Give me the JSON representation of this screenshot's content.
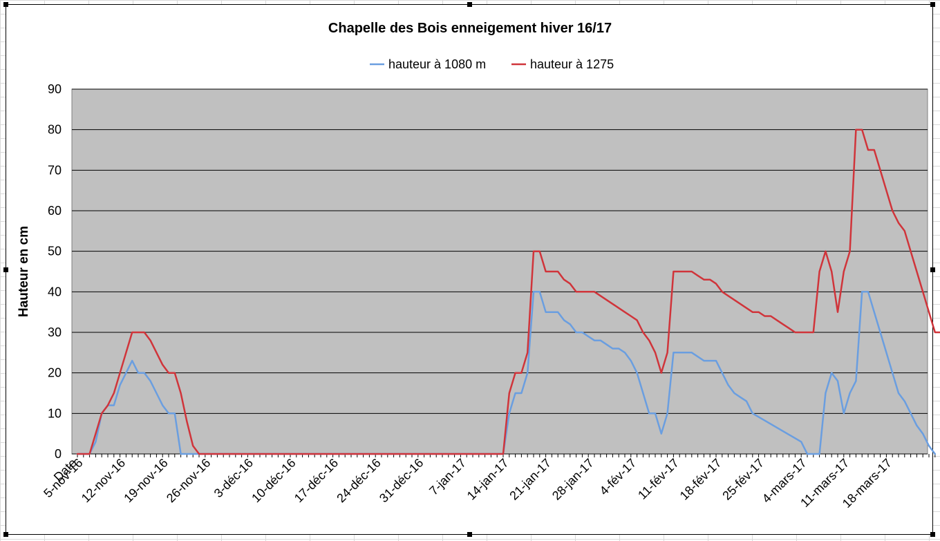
{
  "chart_data": {
    "type": "line",
    "title": "Chapelle des Bois enneigement hiver 16/17",
    "ylabel": "Hauteur en cm",
    "xlabel": "",
    "ylim": [
      0,
      90
    ],
    "y_ticks": [
      "0",
      "10",
      "20",
      "30",
      "40",
      "50",
      "60",
      "70",
      "80",
      "90"
    ],
    "grid": "horizontal",
    "legend_position": "top",
    "plot_background": "#c0c0c0",
    "x_labels": [
      "Date",
      "5-nov-16",
      "12-nov-16",
      "19-nov-16",
      "26-nov-16",
      "3-déc-16",
      "10-déc-16",
      "17-déc-16",
      "24-déc-16",
      "31-déc-16",
      "7-jan-17",
      "14-jan-17",
      "21-jan-17",
      "28-jan-17",
      "4-fév-17",
      "11-fév-17",
      "18-fév-17",
      "25-fév-17",
      "4-mars-17",
      "11-mars-17",
      "18-mars-17"
    ],
    "x_label_days": [
      0,
      1,
      8,
      15,
      22,
      29,
      36,
      43,
      50,
      57,
      64,
      71,
      78,
      85,
      92,
      99,
      106,
      113,
      120,
      127,
      134
    ],
    "series": [
      {
        "name": "hauteur à 1080 m",
        "color": "#6a9ee0",
        "points": [
          [
            0,
            0
          ],
          [
            2,
            0
          ],
          [
            3,
            3
          ],
          [
            4,
            10
          ],
          [
            5,
            12
          ],
          [
            6,
            12
          ],
          [
            7,
            17
          ],
          [
            8,
            20
          ],
          [
            9,
            23
          ],
          [
            10,
            20
          ],
          [
            11,
            20
          ],
          [
            12,
            18
          ],
          [
            13,
            15
          ],
          [
            14,
            12
          ],
          [
            15,
            10
          ],
          [
            16,
            10
          ],
          [
            17,
            0
          ],
          [
            70,
            0
          ],
          [
            71,
            10
          ],
          [
            72,
            15
          ],
          [
            73,
            15
          ],
          [
            74,
            20
          ],
          [
            75,
            40
          ],
          [
            76,
            40
          ],
          [
            77,
            35
          ],
          [
            78,
            35
          ],
          [
            79,
            35
          ],
          [
            80,
            33
          ],
          [
            81,
            32
          ],
          [
            82,
            30
          ],
          [
            83,
            30
          ],
          [
            84,
            29
          ],
          [
            85,
            28
          ],
          [
            86,
            28
          ],
          [
            87,
            27
          ],
          [
            88,
            26
          ],
          [
            89,
            26
          ],
          [
            90,
            25
          ],
          [
            91,
            23
          ],
          [
            92,
            20
          ],
          [
            93,
            15
          ],
          [
            94,
            10
          ],
          [
            95,
            10
          ],
          [
            96,
            5
          ],
          [
            97,
            10
          ],
          [
            98,
            25
          ],
          [
            101,
            25
          ],
          [
            102,
            24
          ],
          [
            103,
            23
          ],
          [
            105,
            23
          ],
          [
            106,
            20
          ],
          [
            107,
            17
          ],
          [
            108,
            15
          ],
          [
            109,
            14
          ],
          [
            110,
            13
          ],
          [
            111,
            10
          ],
          [
            119,
            3
          ],
          [
            120,
            0
          ],
          [
            122,
            0
          ],
          [
            123,
            15
          ],
          [
            124,
            20
          ],
          [
            125,
            18
          ],
          [
            126,
            10
          ],
          [
            127,
            15
          ],
          [
            128,
            18
          ],
          [
            129,
            40
          ],
          [
            130,
            40
          ],
          [
            131,
            35
          ],
          [
            132,
            30
          ],
          [
            133,
            25
          ],
          [
            134,
            20
          ],
          [
            135,
            15
          ],
          [
            136,
            13
          ],
          [
            137,
            10
          ],
          [
            138,
            7
          ],
          [
            139,
            5
          ],
          [
            140,
            2
          ],
          [
            141,
            0
          ]
        ]
      },
      {
        "name": "hauteur à 1275",
        "color": "#d0343a",
        "points": [
          [
            0,
            0
          ],
          [
            2,
            0
          ],
          [
            3,
            5
          ],
          [
            4,
            10
          ],
          [
            5,
            12
          ],
          [
            6,
            15
          ],
          [
            7,
            20
          ],
          [
            8,
            25
          ],
          [
            9,
            30
          ],
          [
            11,
            30
          ],
          [
            12,
            28
          ],
          [
            13,
            25
          ],
          [
            14,
            22
          ],
          [
            15,
            20
          ],
          [
            16,
            20
          ],
          [
            17,
            15
          ],
          [
            18,
            8
          ],
          [
            19,
            2
          ],
          [
            20,
            0
          ],
          [
            70,
            0
          ],
          [
            71,
            15
          ],
          [
            72,
            20
          ],
          [
            73,
            20
          ],
          [
            74,
            25
          ],
          [
            75,
            50
          ],
          [
            76,
            50
          ],
          [
            77,
            45
          ],
          [
            79,
            45
          ],
          [
            80,
            43
          ],
          [
            81,
            42
          ],
          [
            82,
            40
          ],
          [
            85,
            40
          ],
          [
            86,
            39
          ],
          [
            87,
            38
          ],
          [
            88,
            37
          ],
          [
            89,
            36
          ],
          [
            90,
            35
          ],
          [
            91,
            34
          ],
          [
            92,
            33
          ],
          [
            93,
            30
          ],
          [
            94,
            28
          ],
          [
            95,
            25
          ],
          [
            96,
            20
          ],
          [
            97,
            25
          ],
          [
            98,
            45
          ],
          [
            101,
            45
          ],
          [
            102,
            44
          ],
          [
            103,
            43
          ],
          [
            104,
            43
          ],
          [
            105,
            42
          ],
          [
            106,
            40
          ],
          [
            107,
            39
          ],
          [
            108,
            38
          ],
          [
            109,
            37
          ],
          [
            110,
            36
          ],
          [
            111,
            35
          ],
          [
            112,
            35
          ],
          [
            113,
            34
          ],
          [
            114,
            34
          ],
          [
            115,
            33
          ],
          [
            116,
            32
          ],
          [
            117,
            31
          ],
          [
            118,
            30
          ],
          [
            121,
            30
          ],
          [
            122,
            45
          ],
          [
            123,
            50
          ],
          [
            124,
            45
          ],
          [
            125,
            35
          ],
          [
            126,
            45
          ],
          [
            127,
            50
          ],
          [
            128,
            80
          ],
          [
            129,
            80
          ],
          [
            130,
            75
          ],
          [
            131,
            75
          ],
          [
            132,
            70
          ],
          [
            133,
            65
          ],
          [
            134,
            60
          ],
          [
            135,
            57
          ],
          [
            136,
            55
          ],
          [
            137,
            50
          ],
          [
            138,
            45
          ],
          [
            139,
            40
          ],
          [
            140,
            35
          ],
          [
            141,
            30
          ],
          [
            142,
            30
          ]
        ]
      }
    ]
  }
}
